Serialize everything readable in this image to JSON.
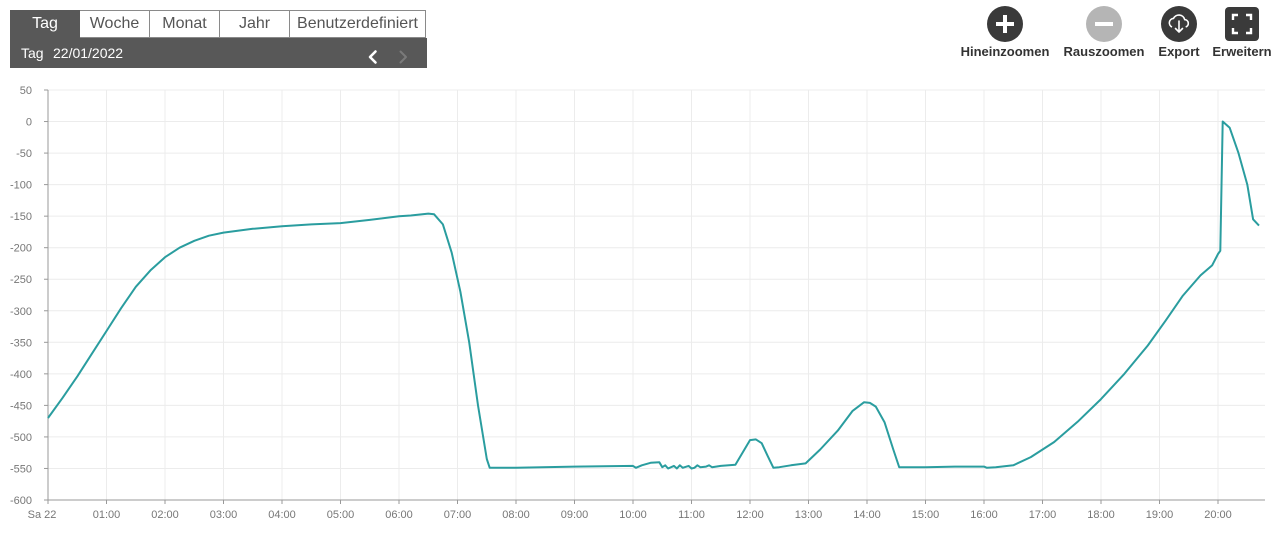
{
  "period_tabs": {
    "day": "Tag",
    "week": "Woche",
    "month": "Monat",
    "year": "Jahr",
    "custom": "Benutzerdefiniert",
    "active": "day"
  },
  "date_bar": {
    "label": "Tag",
    "date": "22/01/2022",
    "prev_icon": "chevron-left-icon",
    "next_icon": "chevron-right-icon"
  },
  "toolbar": {
    "zoom_in": "Hineinzoomen",
    "zoom_out": "Rauszoomen",
    "export": "Export",
    "expand": "Erweitern"
  },
  "colors": {
    "line": "#2a9d9f",
    "grid": "#ececec",
    "tab_active": "#585858"
  },
  "chart_data": {
    "type": "line",
    "title": "",
    "xlabel": "",
    "ylabel": "",
    "x_unit": "hours",
    "xlim": [
      0,
      20.7
    ],
    "ylim": [
      -600,
      50
    ],
    "y_ticks": [
      50,
      0,
      -50,
      -100,
      -150,
      -200,
      -250,
      -300,
      -350,
      -400,
      -450,
      -500,
      -550,
      -600
    ],
    "x_ticks": [
      "Sa 22",
      "01:00",
      "02:00",
      "03:00",
      "04:00",
      "05:00",
      "06:00",
      "07:00",
      "08:00",
      "09:00",
      "10:00",
      "11:00",
      "12:00",
      "13:00",
      "14:00",
      "15:00",
      "16:00",
      "17:00",
      "18:00",
      "19:00",
      "20:00"
    ],
    "grid": true,
    "series": [
      {
        "color": "#2a9d9f",
        "x": [
          0,
          0.25,
          0.5,
          0.75,
          1.0,
          1.25,
          1.5,
          1.75,
          2.0,
          2.25,
          2.5,
          2.75,
          3.0,
          3.5,
          4.0,
          4.5,
          5.0,
          5.5,
          6.0,
          6.2,
          6.4,
          6.5,
          6.6,
          6.75,
          6.9,
          7.05,
          7.2,
          7.35,
          7.5,
          7.55,
          8.0,
          9.0,
          10.0,
          10.05,
          10.15,
          10.3,
          10.45,
          10.5,
          10.55,
          10.6,
          10.7,
          10.75,
          10.8,
          10.85,
          10.95,
          11.0,
          11.05,
          11.1,
          11.15,
          11.25,
          11.3,
          11.35,
          11.5,
          11.75,
          12.0,
          12.1,
          12.2,
          12.3,
          12.4,
          12.5,
          12.7,
          12.95,
          13.2,
          13.5,
          13.75,
          13.95,
          14.05,
          14.15,
          14.3,
          14.45,
          14.55,
          15.0,
          15.5,
          16.0,
          16.05,
          16.2,
          16.5,
          16.8,
          17.2,
          17.6,
          18.0,
          18.4,
          18.8,
          19.1,
          19.4,
          19.7,
          19.9,
          20.0,
          20.04,
          20.08,
          20.2,
          20.35,
          20.5,
          20.6,
          20.7
        ],
        "y": [
          -470,
          -438,
          -404,
          -368,
          -332,
          -296,
          -262,
          -236,
          -215,
          -200,
          -189,
          -181,
          -176,
          -170,
          -166,
          -163,
          -161,
          -156,
          -150,
          -149,
          -147,
          -146,
          -147,
          -163,
          -208,
          -270,
          -350,
          -450,
          -535,
          -549,
          -549,
          -547,
          -546,
          -549,
          -545,
          -541,
          -540,
          -548,
          -545,
          -550,
          -546,
          -550,
          -545,
          -549,
          -546,
          -550,
          -549,
          -545,
          -548,
          -547,
          -545,
          -548,
          -546,
          -544,
          -505,
          -504,
          -510,
          -530,
          -549,
          -548,
          -545,
          -542,
          -520,
          -490,
          -459,
          -445,
          -446,
          -452,
          -477,
          -520,
          -548,
          -548,
          -547,
          -547,
          -549,
          -548,
          -545,
          -532,
          -508,
          -476,
          -440,
          -400,
          -355,
          -316,
          -276,
          -244,
          -228,
          -210,
          -205,
          0,
          -10,
          -50,
          -100,
          -155,
          -165
        ]
      }
    ]
  }
}
